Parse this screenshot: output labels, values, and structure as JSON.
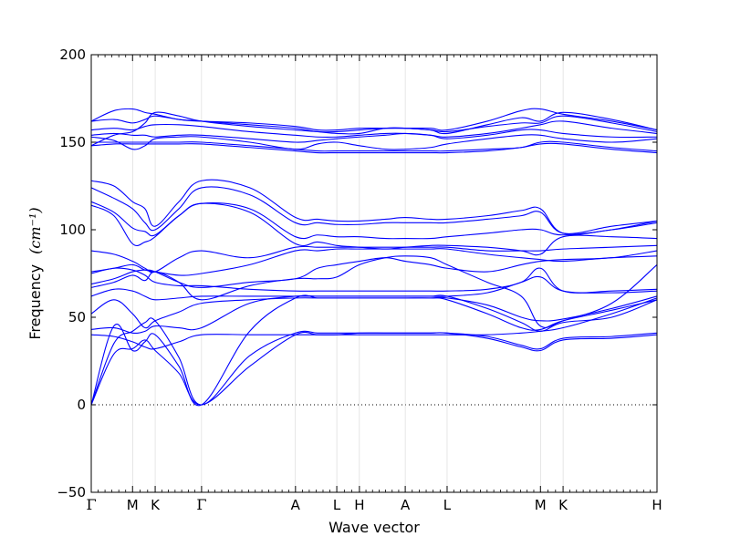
{
  "chart_data": {
    "type": "line",
    "xlabel": "Wave vector",
    "ylabel": "Frequency",
    "ylabel_unit": "(cm⁻¹)",
    "ylim": [
      -50,
      200
    ],
    "yticks": [
      -50,
      0,
      50,
      100,
      150,
      200
    ],
    "xlim": [
      0,
      1
    ],
    "high_symmetry_points": [
      {
        "label": "Γ",
        "x": 0.0
      },
      {
        "label": "M",
        "x": 0.073
      },
      {
        "label": "K",
        "x": 0.113
      },
      {
        "label": "Γ",
        "x": 0.195
      },
      {
        "label": "A",
        "x": 0.361
      },
      {
        "label": "L",
        "x": 0.434
      },
      {
        "label": "H",
        "x": 0.474
      },
      {
        "label": "A",
        "x": 0.555
      },
      {
        "label": "L",
        "x": 0.629
      },
      {
        "label": "M",
        "x": 0.794
      },
      {
        "label": "K",
        "x": 0.834
      },
      {
        "label": "H",
        "x": 1.0
      }
    ],
    "zero_line": true,
    "line_color": "#0000ff",
    "series": [
      {
        "x": [
          0,
          0.04,
          0.073,
          0.095,
          0.113,
          0.155,
          0.195,
          0.28,
          0.361,
          0.4,
          0.434,
          0.474,
          0.52,
          0.555,
          0.6,
          0.629,
          0.7,
          0.76,
          0.794,
          0.834,
          0.92,
          1.0
        ],
        "y": [
          0,
          29,
          32,
          37,
          31,
          18,
          0,
          22,
          40,
          40,
          40,
          41,
          41,
          41,
          41,
          41,
          38,
          33,
          31,
          37,
          38,
          40
        ]
      },
      {
        "x": [
          0,
          0.04,
          0.073,
          0.095,
          0.113,
          0.155,
          0.195,
          0.28,
          0.361,
          0.4,
          0.434,
          0.474,
          0.52,
          0.555,
          0.6,
          0.629,
          0.7,
          0.76,
          0.794,
          0.834,
          0.92,
          1.0
        ],
        "y": [
          0,
          35,
          42,
          47,
          48,
          27,
          0,
          28,
          41,
          41,
          41,
          41,
          41,
          41,
          41,
          41,
          39,
          34,
          32,
          38,
          39,
          41
        ]
      },
      {
        "x": [
          0,
          0.04,
          0.073,
          0.095,
          0.113,
          0.155,
          0.195,
          0.28,
          0.361,
          0.4,
          0.434,
          0.474,
          0.52,
          0.555,
          0.6,
          0.629,
          0.7,
          0.76,
          0.794,
          0.834,
          0.92,
          1.0
        ],
        "y": [
          0,
          45,
          31,
          36,
          40,
          22,
          0,
          42,
          61,
          61,
          61,
          61,
          61,
          61,
          61,
          60,
          52,
          44,
          43,
          48,
          54,
          60
        ]
      },
      {
        "x": [
          0,
          0.04,
          0.073,
          0.095,
          0.113,
          0.155,
          0.195,
          0.28,
          0.361,
          0.4,
          0.434,
          0.474,
          0.52,
          0.555,
          0.6,
          0.629,
          0.7,
          0.76,
          0.794,
          0.834,
          0.92,
          1.0
        ],
        "y": [
          40,
          39,
          36,
          33,
          32,
          36,
          40,
          40,
          40,
          40,
          40,
          40,
          40,
          40,
          40,
          40,
          40,
          41,
          42,
          44,
          52,
          61
        ]
      },
      {
        "x": [
          0,
          0.04,
          0.073,
          0.095,
          0.113,
          0.155,
          0.195,
          0.28,
          0.361,
          0.4,
          0.434,
          0.474,
          0.52,
          0.555,
          0.6,
          0.629,
          0.7,
          0.76,
          0.794,
          0.834,
          0.92,
          1.0
        ],
        "y": [
          43,
          44,
          41,
          42,
          45,
          44,
          44,
          58,
          62,
          62,
          62,
          62,
          62,
          62,
          62,
          62,
          55,
          47,
          42,
          47,
          50,
          60
        ]
      },
      {
        "x": [
          0,
          0.04,
          0.073,
          0.095,
          0.113,
          0.155,
          0.195,
          0.28,
          0.361,
          0.4,
          0.434,
          0.474,
          0.52,
          0.555,
          0.6,
          0.629,
          0.7,
          0.76,
          0.794,
          0.834,
          0.92,
          1.0
        ],
        "y": [
          52,
          60,
          52,
          44,
          48,
          53,
          58,
          60,
          61,
          61,
          61,
          61,
          61,
          61,
          61,
          61,
          57,
          50,
          48,
          49,
          55,
          62
        ]
      },
      {
        "x": [
          0,
          0.04,
          0.073,
          0.095,
          0.113,
          0.155,
          0.195,
          0.28,
          0.361,
          0.4,
          0.434,
          0.474,
          0.52,
          0.555,
          0.6,
          0.629,
          0.7,
          0.76,
          0.794,
          0.834,
          0.92,
          1.0
        ],
        "y": [
          62,
          66,
          65,
          62,
          60,
          61,
          62,
          62,
          62,
          62,
          62,
          62,
          62,
          62,
          62,
          62,
          64,
          70,
          73,
          65,
          64,
          65
        ]
      },
      {
        "x": [
          0,
          0.04,
          0.073,
          0.095,
          0.113,
          0.155,
          0.195,
          0.28,
          0.361,
          0.4,
          0.434,
          0.474,
          0.52,
          0.555,
          0.6,
          0.629,
          0.7,
          0.76,
          0.794,
          0.834,
          0.92,
          1.0
        ],
        "y": [
          67,
          70,
          74,
          71,
          76,
          70,
          60,
          68,
          72,
          72,
          73,
          80,
          84,
          85,
          84,
          80,
          70,
          62,
          45,
          48,
          58,
          80
        ]
      },
      {
        "x": [
          0,
          0.04,
          0.073,
          0.095,
          0.113,
          0.155,
          0.195,
          0.28,
          0.361,
          0.4,
          0.434,
          0.474,
          0.52,
          0.555,
          0.6,
          0.629,
          0.7,
          0.76,
          0.794,
          0.834,
          0.92,
          1.0
        ],
        "y": [
          69,
          72,
          76,
          77,
          76,
          70,
          67,
          70,
          72,
          78,
          80,
          82,
          84,
          82,
          80,
          78,
          76,
          80,
          82,
          83,
          84,
          88
        ]
      },
      {
        "x": [
          0,
          0.04,
          0.073,
          0.095,
          0.113,
          0.155,
          0.195,
          0.28,
          0.361,
          0.4,
          0.434,
          0.474,
          0.52,
          0.555,
          0.6,
          0.629,
          0.7,
          0.76,
          0.794,
          0.834,
          0.92,
          1.0
        ],
        "y": [
          75,
          78,
          77,
          74,
          70,
          68,
          68,
          66,
          65,
          65,
          65,
          65,
          65,
          65,
          65,
          65,
          66,
          70,
          78,
          65,
          65,
          66
        ]
      },
      {
        "x": [
          0,
          0.04,
          0.073,
          0.095,
          0.113,
          0.155,
          0.195,
          0.28,
          0.361,
          0.4,
          0.434,
          0.474,
          0.52,
          0.555,
          0.6,
          0.629,
          0.7,
          0.76,
          0.794,
          0.834,
          0.92,
          1.0
        ],
        "y": [
          76,
          78,
          80,
          77,
          76,
          74,
          75,
          80,
          88,
          88,
          89,
          89,
          89,
          89,
          89,
          89,
          86,
          84,
          83,
          82,
          84,
          85
        ]
      },
      {
        "x": [
          0,
          0.04,
          0.073,
          0.095,
          0.113,
          0.155,
          0.195,
          0.28,
          0.361,
          0.4,
          0.434,
          0.474,
          0.52,
          0.555,
          0.6,
          0.629,
          0.7,
          0.76,
          0.794,
          0.834,
          0.92,
          1.0
        ],
        "y": [
          88,
          86,
          82,
          78,
          76,
          84,
          88,
          84,
          90,
          90,
          90,
          90,
          90,
          90,
          90,
          90,
          88,
          88,
          88,
          89,
          90,
          91
        ]
      },
      {
        "x": [
          0,
          0.04,
          0.073,
          0.095,
          0.113,
          0.155,
          0.195,
          0.28,
          0.361,
          0.4,
          0.434,
          0.474,
          0.52,
          0.555,
          0.6,
          0.629,
          0.7,
          0.76,
          0.794,
          0.834,
          0.92,
          1.0
        ],
        "y": [
          114,
          108,
          92,
          93,
          96,
          108,
          115,
          110,
          92,
          93,
          91,
          90,
          89,
          90,
          91,
          91,
          90,
          88,
          86,
          96,
          96,
          95
        ]
      },
      {
        "x": [
          0,
          0.04,
          0.073,
          0.095,
          0.113,
          0.155,
          0.195,
          0.28,
          0.361,
          0.4,
          0.434,
          0.474,
          0.52,
          0.555,
          0.6,
          0.629,
          0.7,
          0.76,
          0.794,
          0.834,
          0.92,
          1.0
        ],
        "y": [
          116,
          110,
          101,
          99,
          97,
          108,
          115,
          112,
          96,
          97,
          96,
          96,
          95,
          95,
          95,
          96,
          98,
          100,
          100,
          97,
          100,
          105
        ]
      },
      {
        "x": [
          0,
          0.04,
          0.073,
          0.095,
          0.113,
          0.155,
          0.195,
          0.28,
          0.361,
          0.4,
          0.434,
          0.474,
          0.52,
          0.555,
          0.6,
          0.629,
          0.7,
          0.76,
          0.794,
          0.834,
          0.92,
          1.0
        ],
        "y": [
          124,
          118,
          112,
          104,
          100,
          112,
          124,
          120,
          104,
          104,
          103,
          103,
          104,
          104,
          104,
          104,
          106,
          108,
          110,
          98,
          102,
          105
        ]
      },
      {
        "x": [
          0,
          0.04,
          0.073,
          0.095,
          0.113,
          0.155,
          0.195,
          0.28,
          0.361,
          0.4,
          0.434,
          0.474,
          0.52,
          0.555,
          0.6,
          0.629,
          0.7,
          0.76,
          0.794,
          0.834,
          0.92,
          1.0
        ],
        "y": [
          128,
          125,
          116,
          112,
          102,
          116,
          128,
          124,
          107,
          106,
          105,
          105,
          106,
          107,
          106,
          106,
          108,
          111,
          112,
          98,
          100,
          104
        ]
      },
      {
        "x": [
          0,
          0.04,
          0.073,
          0.095,
          0.113,
          0.155,
          0.195,
          0.28,
          0.361,
          0.4,
          0.434,
          0.474,
          0.52,
          0.555,
          0.6,
          0.629,
          0.7,
          0.76,
          0.794,
          0.834,
          0.92,
          1.0
        ],
        "y": [
          148,
          149,
          149,
          149,
          149,
          149,
          149,
          147,
          145,
          144,
          144,
          144,
          144,
          144,
          144,
          144,
          145,
          147,
          149,
          149,
          146,
          144
        ]
      },
      {
        "x": [
          0,
          0.04,
          0.073,
          0.095,
          0.113,
          0.155,
          0.195,
          0.28,
          0.361,
          0.4,
          0.434,
          0.474,
          0.52,
          0.555,
          0.6,
          0.629,
          0.7,
          0.76,
          0.794,
          0.834,
          0.92,
          1.0
        ],
        "y": [
          150,
          150,
          150,
          150,
          150,
          150,
          150,
          148,
          146,
          145,
          145,
          145,
          145,
          145,
          145,
          145,
          146,
          147,
          150,
          150,
          147,
          145
        ]
      },
      {
        "x": [
          0,
          0.04,
          0.073,
          0.095,
          0.113,
          0.155,
          0.195,
          0.28,
          0.361,
          0.4,
          0.434,
          0.474,
          0.52,
          0.555,
          0.6,
          0.629,
          0.7,
          0.76,
          0.794,
          0.834,
          0.92,
          1.0
        ],
        "y": [
          153,
          151,
          146,
          148,
          152,
          153,
          153,
          150,
          146,
          149,
          150,
          148,
          146,
          146,
          147,
          149,
          152,
          154,
          154,
          152,
          150,
          152
        ]
      },
      {
        "x": [
          0,
          0.04,
          0.073,
          0.095,
          0.113,
          0.155,
          0.195,
          0.28,
          0.361,
          0.4,
          0.434,
          0.474,
          0.52,
          0.555,
          0.6,
          0.629,
          0.7,
          0.76,
          0.794,
          0.834,
          0.92,
          1.0
        ],
        "y": [
          154,
          155,
          154,
          154,
          153,
          154,
          154,
          152,
          150,
          151,
          152,
          153,
          154,
          155,
          154,
          152,
          154,
          157,
          157,
          155,
          153,
          153
        ]
      },
      {
        "x": [
          0,
          0.04,
          0.073,
          0.095,
          0.113,
          0.155,
          0.195,
          0.28,
          0.361,
          0.4,
          0.434,
          0.474,
          0.52,
          0.555,
          0.6,
          0.629,
          0.7,
          0.76,
          0.794,
          0.834,
          0.92,
          1.0
        ],
        "y": [
          157,
          158,
          157,
          159,
          160,
          160,
          159,
          156,
          154,
          153,
          153,
          154,
          155,
          155,
          154,
          153,
          155,
          158,
          160,
          162,
          158,
          155
        ]
      },
      {
        "x": [
          0,
          0.04,
          0.073,
          0.095,
          0.113,
          0.155,
          0.195,
          0.28,
          0.361,
          0.4,
          0.434,
          0.474,
          0.52,
          0.555,
          0.6,
          0.629,
          0.7,
          0.76,
          0.794,
          0.834,
          0.92,
          1.0
        ],
        "y": [
          162,
          163,
          161,
          163,
          165,
          163,
          162,
          160,
          158,
          156,
          156,
          157,
          158,
          158,
          157,
          156,
          159,
          161,
          161,
          165,
          161,
          156
        ]
      },
      {
        "x": [
          0,
          0.04,
          0.073,
          0.095,
          0.113,
          0.155,
          0.195,
          0.28,
          0.361,
          0.4,
          0.434,
          0.474,
          0.52,
          0.555,
          0.6,
          0.629,
          0.7,
          0.76,
          0.794,
          0.834,
          0.92,
          1.0
        ],
        "y": [
          162,
          168,
          169,
          167,
          166,
          163,
          162,
          161,
          159,
          157,
          157,
          158,
          158,
          158,
          158,
          157,
          162,
          168,
          169,
          166,
          162,
          157
        ]
      },
      {
        "x": [
          0,
          0.04,
          0.073,
          0.095,
          0.113,
          0.155,
          0.195,
          0.28,
          0.361,
          0.4,
          0.434,
          0.474,
          0.52,
          0.555,
          0.6,
          0.629,
          0.7,
          0.76,
          0.794,
          0.834,
          0.92,
          1.0
        ],
        "y": [
          148,
          154,
          156,
          161,
          167,
          165,
          162,
          159,
          157,
          156,
          155,
          155,
          158,
          158,
          157,
          155,
          160,
          164,
          162,
          167,
          163,
          157
        ]
      }
    ]
  }
}
